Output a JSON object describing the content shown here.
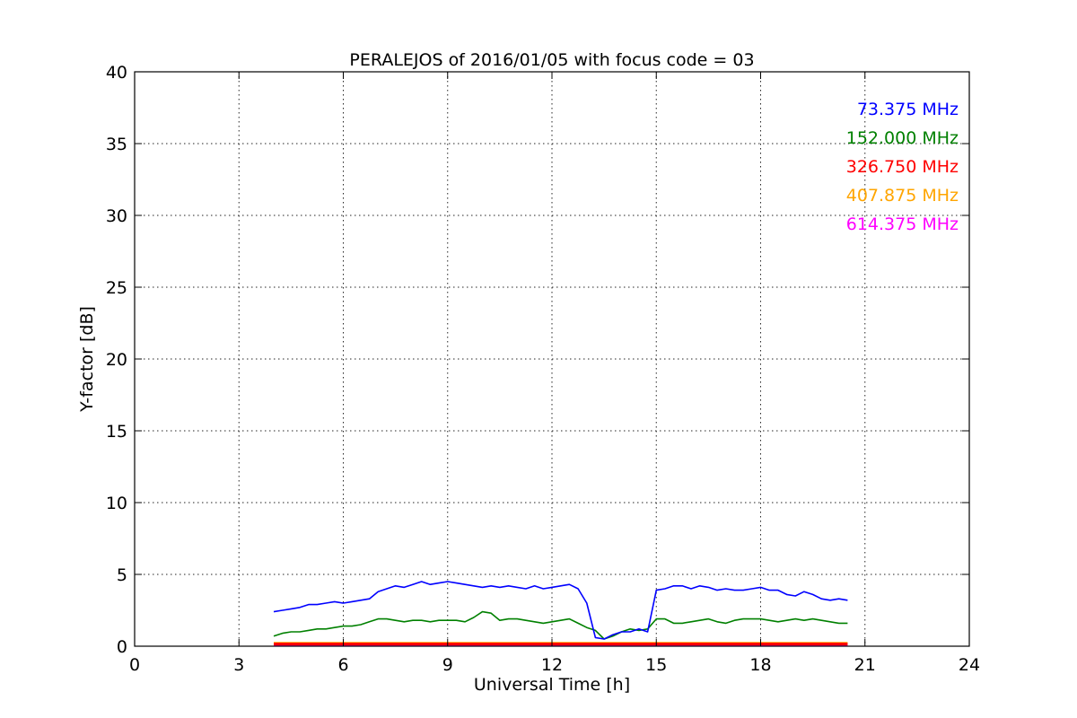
{
  "chart_data": {
    "type": "line",
    "title": "PERALEJOS of 2016/01/05 with focus code = 03",
    "xlabel": "Universal Time [h]",
    "ylabel": "Y-factor [dB]",
    "xlim": [
      0,
      24
    ],
    "ylim": [
      0,
      40
    ],
    "xticks": [
      0,
      3,
      6,
      9,
      12,
      15,
      18,
      21,
      24
    ],
    "yticks": [
      0,
      5,
      10,
      15,
      20,
      25,
      30,
      35,
      40
    ],
    "xtick_labels": [
      "0",
      "3",
      "6",
      "9",
      "12",
      "15",
      "18",
      "21",
      "24"
    ],
    "ytick_labels": [
      "0",
      "5",
      "10",
      "15",
      "20",
      "25",
      "30",
      "35",
      "40"
    ],
    "grid": true,
    "legend_position": "top-right",
    "series": [
      {
        "name": "73.375 MHz",
        "color": "#0000ff",
        "x": [
          4.0,
          4.25,
          4.5,
          4.75,
          5.0,
          5.25,
          5.5,
          5.75,
          6.0,
          6.25,
          6.5,
          6.75,
          7.0,
          7.25,
          7.5,
          7.75,
          8.0,
          8.25,
          8.5,
          8.75,
          9.0,
          9.25,
          9.5,
          9.75,
          10.0,
          10.25,
          10.5,
          10.75,
          11.0,
          11.25,
          11.5,
          11.75,
          12.0,
          12.25,
          12.5,
          12.75,
          13.0,
          13.25,
          13.5,
          13.75,
          14.0,
          14.25,
          14.5,
          14.75,
          15.0,
          15.25,
          15.5,
          15.75,
          16.0,
          16.25,
          16.5,
          16.75,
          17.0,
          17.25,
          17.5,
          17.75,
          18.0,
          18.25,
          18.5,
          18.75,
          19.0,
          19.25,
          19.5,
          19.75,
          20.0,
          20.25,
          20.5
        ],
        "y": [
          2.4,
          2.5,
          2.6,
          2.7,
          2.9,
          2.9,
          3.0,
          3.1,
          3.0,
          3.1,
          3.2,
          3.3,
          3.8,
          4.0,
          4.2,
          4.1,
          4.3,
          4.5,
          4.3,
          4.4,
          4.5,
          4.4,
          4.3,
          4.2,
          4.1,
          4.2,
          4.1,
          4.2,
          4.1,
          4.0,
          4.2,
          4.0,
          4.1,
          4.2,
          4.3,
          4.0,
          3.0,
          0.6,
          0.5,
          0.8,
          1.0,
          1.0,
          1.2,
          1.0,
          3.9,
          4.0,
          4.2,
          4.2,
          4.0,
          4.2,
          4.1,
          3.9,
          4.0,
          3.9,
          3.9,
          4.0,
          4.1,
          3.9,
          3.9,
          3.6,
          3.5,
          3.8,
          3.6,
          3.3,
          3.2,
          3.3,
          3.2
        ]
      },
      {
        "name": "152.000 MHz",
        "color": "#008000",
        "x": [
          4.0,
          4.25,
          4.5,
          4.75,
          5.0,
          5.25,
          5.5,
          5.75,
          6.0,
          6.25,
          6.5,
          6.75,
          7.0,
          7.25,
          7.5,
          7.75,
          8.0,
          8.25,
          8.5,
          8.75,
          9.0,
          9.25,
          9.5,
          9.75,
          10.0,
          10.25,
          10.5,
          10.75,
          11.0,
          11.25,
          11.5,
          11.75,
          12.0,
          12.25,
          12.5,
          12.75,
          13.0,
          13.25,
          13.5,
          13.75,
          14.0,
          14.25,
          14.5,
          14.75,
          15.0,
          15.25,
          15.5,
          15.75,
          16.0,
          16.25,
          16.5,
          16.75,
          17.0,
          17.25,
          17.5,
          17.75,
          18.0,
          18.25,
          18.5,
          18.75,
          19.0,
          19.25,
          19.5,
          19.75,
          20.0,
          20.25,
          20.5
        ],
        "y": [
          0.7,
          0.9,
          1.0,
          1.0,
          1.1,
          1.2,
          1.2,
          1.3,
          1.4,
          1.4,
          1.5,
          1.7,
          1.9,
          1.9,
          1.8,
          1.7,
          1.8,
          1.8,
          1.7,
          1.8,
          1.8,
          1.8,
          1.7,
          2.0,
          2.4,
          2.3,
          1.8,
          1.9,
          1.9,
          1.8,
          1.7,
          1.6,
          1.7,
          1.8,
          1.9,
          1.6,
          1.3,
          1.1,
          0.5,
          0.7,
          1.0,
          1.2,
          1.1,
          1.2,
          1.9,
          1.9,
          1.6,
          1.6,
          1.7,
          1.8,
          1.9,
          1.7,
          1.6,
          1.8,
          1.9,
          1.9,
          1.9,
          1.8,
          1.7,
          1.8,
          1.9,
          1.8,
          1.9,
          1.8,
          1.7,
          1.6,
          1.6
        ]
      },
      {
        "name": "326.750 MHz",
        "color": "#ff0000",
        "x": [
          4.0,
          20.5
        ],
        "y": [
          0.15,
          0.15
        ]
      },
      {
        "name": "407.875 MHz",
        "color": "#ffa500",
        "x": [
          4.0,
          20.5
        ],
        "y": [
          0.2,
          0.2
        ]
      },
      {
        "name": "614.375 MHz",
        "color": "#ff00ff",
        "x": [
          4.0,
          20.5
        ],
        "y": [
          0.1,
          0.1
        ]
      }
    ]
  }
}
